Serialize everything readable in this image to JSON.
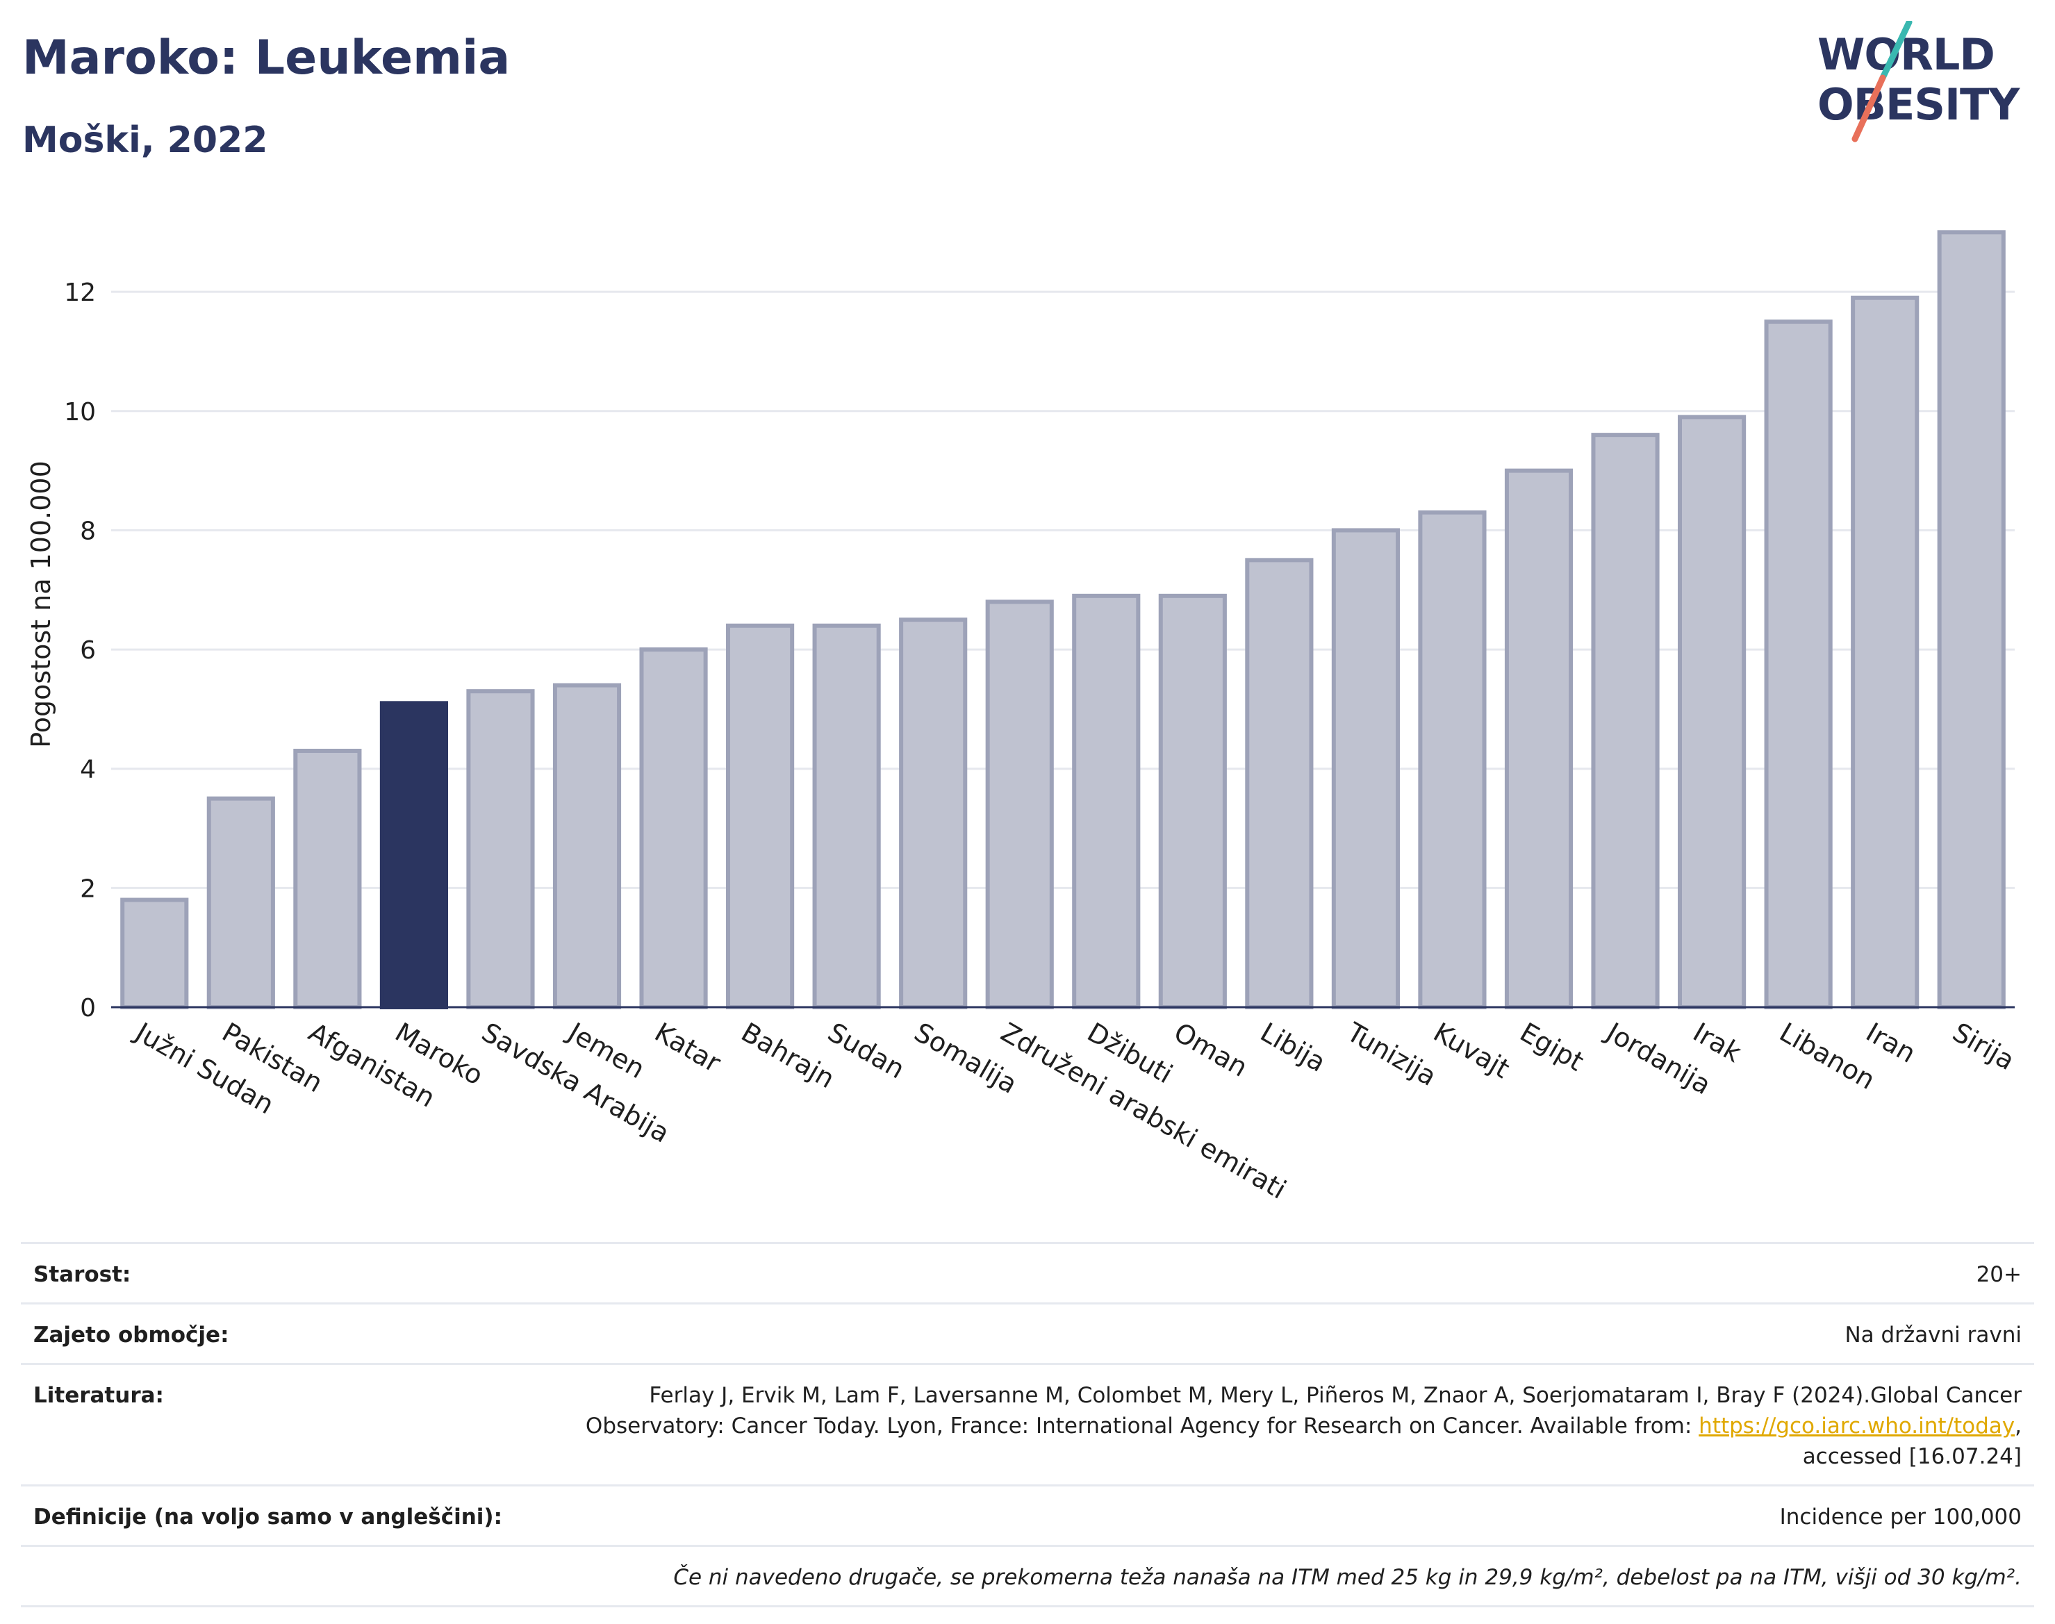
{
  "header": {
    "title": "Maroko: Leukemia",
    "subtitle": "Moški, 2022"
  },
  "logo": {
    "line1": "WORLD",
    "line2": "OBESITY",
    "colors": {
      "text": "#2b3560",
      "slash_top": "#3ab8b0",
      "slash_bottom": "#e8705a"
    }
  },
  "chart_data": {
    "type": "bar",
    "title": "Maroko: Leukemia",
    "subtitle": "Moški, 2022",
    "xlabel": "",
    "ylabel": "Pogostost na 100.000",
    "ylim": [
      0,
      13.4
    ],
    "yticks": [
      0,
      2,
      4,
      6,
      8,
      10,
      12
    ],
    "grid": true,
    "highlight": "Maroko",
    "colors": {
      "bar": "#bfc2d0",
      "bar_edge": "#9da2b8",
      "highlight": "#2b3560",
      "grid": "#e6e8ee",
      "axis": "#2b3560"
    },
    "categories": [
      "Južni Sudan",
      "Pakistan",
      "Afganistan",
      "Maroko",
      "Savdska Arabija",
      "Jemen",
      "Katar",
      "Bahrajn",
      "Sudan",
      "Somalija",
      "Združeni arabski emirati",
      "Džibuti",
      "Oman",
      "Libija",
      "Tunizija",
      "Kuvajt",
      "Egipt",
      "Jordanija",
      "Irak",
      "Libanon",
      "Iran",
      "Sirija"
    ],
    "values": [
      1.8,
      3.5,
      4.3,
      5.1,
      5.3,
      5.4,
      6.0,
      6.4,
      6.4,
      6.5,
      6.8,
      6.9,
      6.9,
      7.5,
      8.0,
      8.3,
      9.0,
      9.6,
      9.9,
      11.5,
      11.9,
      13.0
    ]
  },
  "meta": {
    "age_label": "Starost:",
    "age_value": "20+",
    "coverage_label": "Zajeto območje:",
    "coverage_value": "Na državni ravni",
    "literature_label": "Literatura:",
    "literature_text_1": "Ferlay J, Ervik M, Lam F, Laversanne M, Colombet M, Mery L, Piñeros M, Znaor A, Soerjomataram I, Bray F (2024).Global Cancer",
    "literature_text_2": "Observatory: Cancer Today. Lyon, France: International Agency for Research on Cancer. Available from:",
    "literature_link": "https://gco.iarc.who.int/today",
    "literature_text_3": "accessed [16.07.24]",
    "definitions_label": "Definicije (na voljo samo v angleščini):",
    "definitions_value": "Incidence per 100,000",
    "note": "Če ni navedeno drugače, se prekomerna teža nanaša na ITM med 25 kg in 29,9 kg/m², debelost pa na ITM, višji od 30 kg/m²."
  }
}
